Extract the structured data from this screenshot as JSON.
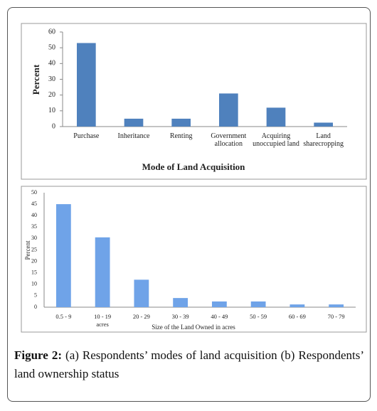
{
  "chart_data": [
    {
      "type": "bar",
      "y_label": "Percent",
      "x_label": "Mode of Land Acquisition",
      "color": "#4f81bd",
      "categories": [
        "Purchase",
        "Inheritance",
        "Renting",
        "Government allocation",
        "Acquiring unoccupied land",
        "Land sharecropping"
      ],
      "values": [
        53,
        5,
        5,
        21,
        12,
        2.5
      ],
      "ylim": [
        0,
        60
      ],
      "yticks": [
        0,
        10,
        20,
        30,
        40,
        50,
        60
      ],
      "grid": false
    },
    {
      "type": "bar",
      "y_label": "Percent",
      "x_label": "Size of the Land Owned in acres",
      "color": "#6fa3e8",
      "categories": [
        "0.5 - 9",
        "10 - 19 acres",
        "20 - 29",
        "30 - 39",
        "40 - 49",
        "50 - 59",
        "60 - 69",
        "70 - 79"
      ],
      "values": [
        45,
        30.5,
        12,
        4,
        2.5,
        2.5,
        1.2,
        1.2
      ],
      "ylim": [
        0,
        50
      ],
      "yticks": [
        0,
        5,
        10,
        15,
        20,
        25,
        30,
        35,
        40,
        45,
        50
      ],
      "grid": false
    }
  ],
  "caption": {
    "label": "Figure 2:",
    "text": "(a) Respondents’ modes of land acquisition (b) Respondents’ land ownership status"
  }
}
